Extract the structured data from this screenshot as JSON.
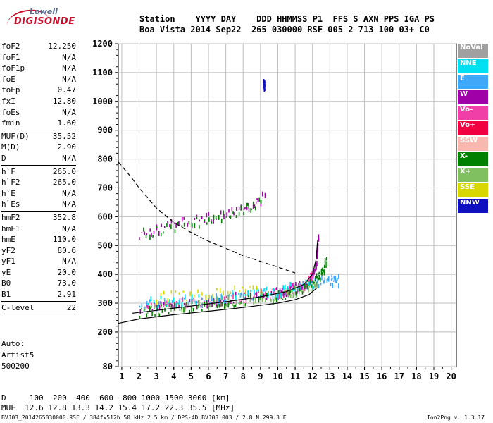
{
  "logo": {
    "line1": "Lowell",
    "line2": "DIGISONDE"
  },
  "header": {
    "line1": "Station    YYYY DAY    DDD HHMMSS P1  FFS S AXN PPS IGA PS",
    "line2": "Boa Vista 2014 Sep22  265 030000 RSF 005 2 713 100 03+ C0"
  },
  "params": [
    {
      "k": "foF2",
      "v": "12.250"
    },
    {
      "k": "foF1",
      "v": "N/A"
    },
    {
      "k": "foF1p",
      "v": "N/A"
    },
    {
      "k": "foE",
      "v": "N/A"
    },
    {
      "k": "foEp",
      "v": "0.47"
    },
    {
      "k": "fxI",
      "v": "12.80"
    },
    {
      "k": "foEs",
      "v": "N/A"
    },
    {
      "k": "fmin",
      "v": "1.60"
    },
    {
      "sep": true
    },
    {
      "k": "MUF(D)",
      "v": "35.52"
    },
    {
      "k": "M(D)",
      "v": "2.90"
    },
    {
      "k": "D",
      "v": "N/A"
    },
    {
      "sep": true
    },
    {
      "k": "h`F",
      "v": "265.0"
    },
    {
      "k": "h`F2",
      "v": "265.0"
    },
    {
      "k": "h`E",
      "v": "N/A"
    },
    {
      "k": "h`Es",
      "v": "N/A"
    },
    {
      "sep": true
    },
    {
      "k": "hmF2",
      "v": "352.8"
    },
    {
      "k": "hmF1",
      "v": "N/A"
    },
    {
      "k": "hmE",
      "v": "110.0"
    },
    {
      "k": "yF2",
      "v": "80.6"
    },
    {
      "k": "yF1",
      "v": "N/A"
    },
    {
      "k": "yE",
      "v": "20.0"
    },
    {
      "k": "B0",
      "v": "73.0"
    },
    {
      "k": "B1",
      "v": "2.91"
    },
    {
      "sep": true
    },
    {
      "k": "C-level",
      "v": "22"
    },
    {
      "sep": true
    }
  ],
  "auto": {
    "line1": "Auto:",
    "line2": "Artist5",
    "line3": "500200"
  },
  "muf_table": {
    "line1": "D     100  200  400  600  800 1000 1500 3000 [km]",
    "line2": "MUF  12.6 12.8 13.3 14.2 15.4 17.2 22.3 35.5 [MHz]"
  },
  "footer": "BVJ03_2014265030000.RSF / 384fx512h 50 kHz 2.5 km / DPS-4D BVJ03 003 / 2.8 N 299.3 E",
  "version": "Ion2Png v. 1.3.17",
  "legend": [
    {
      "label": "NoVal",
      "color": "#a0a0a0"
    },
    {
      "label": "NNE",
      "color": "#00e0f0"
    },
    {
      "label": "E",
      "color": "#40a8f8"
    },
    {
      "label": "W",
      "color": "#a000a8"
    },
    {
      "label": "Vo-",
      "color": "#f040a8"
    },
    {
      "label": "Vo+",
      "color": "#f00040"
    },
    {
      "label": "SSW",
      "color": "#f8b8b0"
    },
    {
      "label": "X-",
      "color": "#008000"
    },
    {
      "label": "X+",
      "color": "#80c060"
    },
    {
      "label": "SSE",
      "color": "#d8d800"
    },
    {
      "label": "NNW",
      "color": "#1010c0"
    }
  ],
  "chart_data": {
    "type": "scatter",
    "x_ticks": [
      "1",
      "2",
      "3",
      "4",
      "5",
      "6",
      "7",
      "8",
      "9",
      "10",
      "11",
      "12",
      "13",
      "14",
      "15",
      "16",
      "17",
      "18",
      "19",
      "20"
    ],
    "y_ticks": [
      "80",
      "200",
      "300",
      "400",
      "500",
      "600",
      "700",
      "800",
      "900",
      "1000",
      "1100",
      "1200"
    ],
    "xlim": [
      0.8,
      20.3
    ],
    "ylim": [
      80,
      1200
    ],
    "grid": true,
    "legend_position": "right",
    "x_unit": "MHz",
    "y_unit": "km",
    "traces": [
      {
        "name": "E",
        "color": "#40a8f8",
        "points": [
          [
            2.0,
            290
          ],
          [
            4,
            300
          ],
          [
            6,
            308
          ],
          [
            8,
            318
          ],
          [
            10,
            335
          ],
          [
            11,
            348
          ],
          [
            12,
            370
          ],
          [
            13,
            380
          ],
          [
            13.5,
            375
          ]
        ]
      },
      {
        "name": "W",
        "color": "#a000a8",
        "points": [
          [
            2.0,
            282
          ],
          [
            4,
            290
          ],
          [
            6,
            302
          ],
          [
            8,
            318
          ],
          [
            10,
            335
          ],
          [
            11,
            352
          ],
          [
            11.8,
            375
          ],
          [
            12.1,
            405
          ],
          [
            12.25,
            470
          ],
          [
            12.3,
            520
          ]
        ]
      },
      {
        "name": "Vo-",
        "color": "#f040a8",
        "points": [
          [
            2.5,
            290
          ],
          [
            5,
            300
          ],
          [
            7,
            312
          ],
          [
            9,
            325
          ],
          [
            10.5,
            340
          ],
          [
            11.5,
            360
          ],
          [
            12.0,
            395
          ]
        ]
      },
      {
        "name": "X-",
        "color": "#008000",
        "points": [
          [
            2.0,
            268
          ],
          [
            4,
            280
          ],
          [
            6,
            292
          ],
          [
            8,
            306
          ],
          [
            10,
            322
          ],
          [
            11,
            338
          ],
          [
            12,
            370
          ],
          [
            12.5,
            400
          ],
          [
            12.8,
            450
          ]
        ]
      },
      {
        "name": "X+",
        "color": "#80c060",
        "points": [
          [
            2.3,
            272
          ],
          [
            5,
            290
          ],
          [
            8,
            310
          ],
          [
            10.5,
            330
          ],
          [
            12.2,
            360
          ]
        ]
      },
      {
        "name": "NNE",
        "color": "#00e0f0",
        "points": [
          [
            2.5,
            300
          ],
          [
            5,
            310
          ],
          [
            8,
            325
          ],
          [
            10,
            340
          ],
          [
            12,
            365
          ]
        ]
      },
      {
        "name": "SSE",
        "color": "#d8d800",
        "points": [
          [
            3,
            320
          ],
          [
            6,
            330
          ],
          [
            9,
            345
          ]
        ]
      },
      {
        "name": "W",
        "color": "#a000a8",
        "points": [
          [
            2.0,
            540
          ],
          [
            4,
            570
          ],
          [
            6,
            595
          ],
          [
            8,
            630
          ],
          [
            9.2,
            665
          ]
        ]
      },
      {
        "name": "X-",
        "color": "#008000",
        "points": [
          [
            2.2,
            540
          ],
          [
            5,
            575
          ],
          [
            7,
            605
          ],
          [
            9,
            650
          ]
        ]
      },
      {
        "name": "NNW",
        "color": "#1010c0",
        "points": [
          [
            9.2,
            1050
          ],
          [
            9.2,
            1060
          ]
        ]
      }
    ],
    "profile_solid": [
      [
        0.8,
        230
      ],
      [
        2,
        245
      ],
      [
        4,
        260
      ],
      [
        6,
        272
      ],
      [
        8,
        285
      ],
      [
        10,
        300
      ],
      [
        11,
        312
      ],
      [
        11.8,
        330
      ],
      [
        12.1,
        345
      ],
      [
        12.25,
        352.8
      ]
    ],
    "profile_dashed": [
      [
        0.8,
        790
      ],
      [
        1.5,
        740
      ],
      [
        2,
        700
      ],
      [
        3,
        630
      ],
      [
        4,
        580
      ],
      [
        5,
        545
      ],
      [
        6,
        515
      ],
      [
        7,
        490
      ],
      [
        8,
        465
      ],
      [
        9,
        445
      ],
      [
        10,
        425
      ],
      [
        11,
        405
      ]
    ],
    "trace_fit": [
      [
        1.6,
        265
      ],
      [
        3,
        275
      ],
      [
        5,
        290
      ],
      [
        7,
        305
      ],
      [
        9,
        322
      ],
      [
        10.5,
        340
      ],
      [
        11.5,
        365
      ],
      [
        12.0,
        400
      ],
      [
        12.2,
        450
      ],
      [
        12.3,
        520
      ]
    ]
  }
}
